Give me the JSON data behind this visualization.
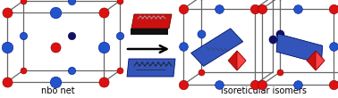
{
  "fig_width": 3.78,
  "fig_height": 1.1,
  "dpi": 100,
  "bg_color": "#ffffff",
  "label_left": "nbo net",
  "label_right": "isoreticular isomers",
  "label_fontsize": 7.0,
  "box_edge_color": "#666666",
  "red_color": "#dd1111",
  "blue_color": "#2255cc",
  "dark_blue_color": "#111166",
  "red_panel_color": "#cc1111",
  "blue_panel_color": "#3355bb"
}
